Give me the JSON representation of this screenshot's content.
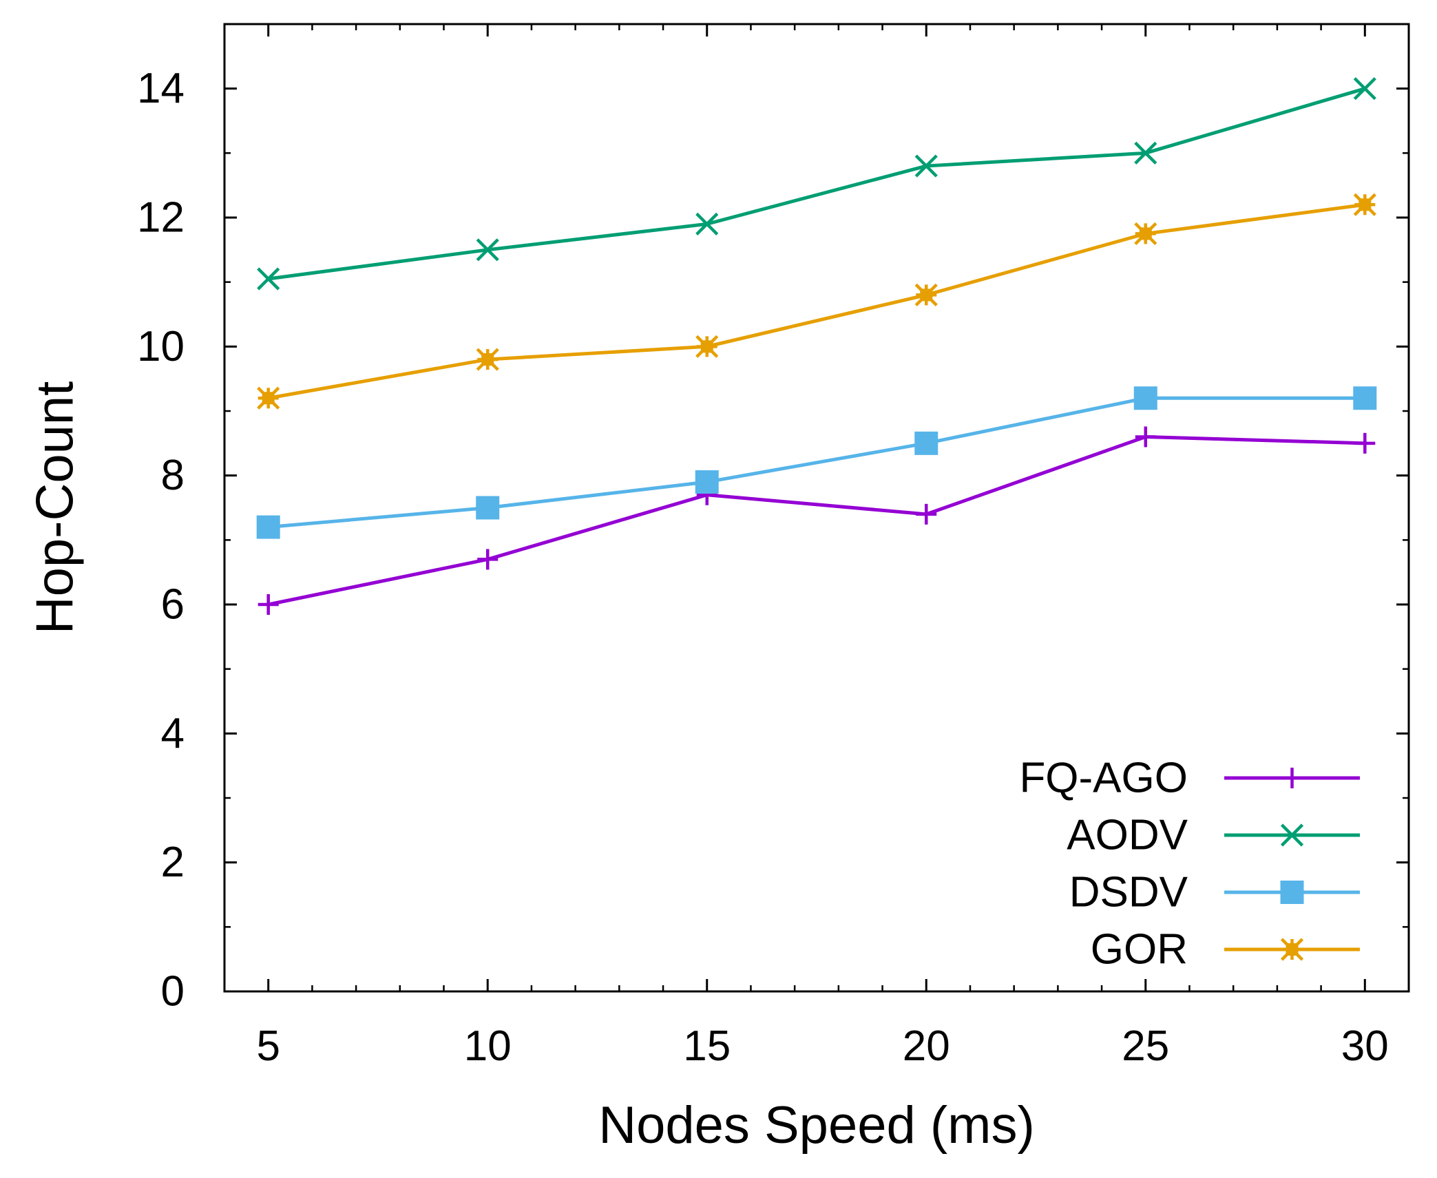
{
  "chart_data": {
    "type": "line",
    "title": "",
    "xlabel": "Nodes Speed (ms)",
    "ylabel": "Hop-Count",
    "x": [
      5,
      10,
      15,
      20,
      25,
      30
    ],
    "xlim": [
      4,
      31
    ],
    "ylim": [
      0,
      15
    ],
    "xticks": [
      "5",
      "10",
      "15",
      "20",
      "25",
      "30"
    ],
    "yticks": [
      "0",
      "2",
      "4",
      "6",
      "8",
      "10",
      "12",
      "14"
    ],
    "grid": false,
    "legend_position": "bottom-right",
    "series": [
      {
        "name": "FQ-AGO",
        "color": "#9400d3",
        "marker": "plus",
        "values": [
          6.0,
          6.7,
          7.7,
          7.4,
          8.6,
          8.5
        ]
      },
      {
        "name": "AODV",
        "color": "#009e73",
        "marker": "cross",
        "values": [
          11.05,
          11.5,
          11.9,
          12.8,
          13.0,
          14.0
        ]
      },
      {
        "name": "DSDV",
        "color": "#56b4e9",
        "marker": "square",
        "values": [
          7.2,
          7.5,
          7.9,
          8.5,
          9.2,
          9.2
        ]
      },
      {
        "name": "GOR",
        "color": "#e69f00",
        "marker": "star",
        "values": [
          9.2,
          9.8,
          10.0,
          10.8,
          11.75,
          12.2
        ]
      }
    ]
  }
}
